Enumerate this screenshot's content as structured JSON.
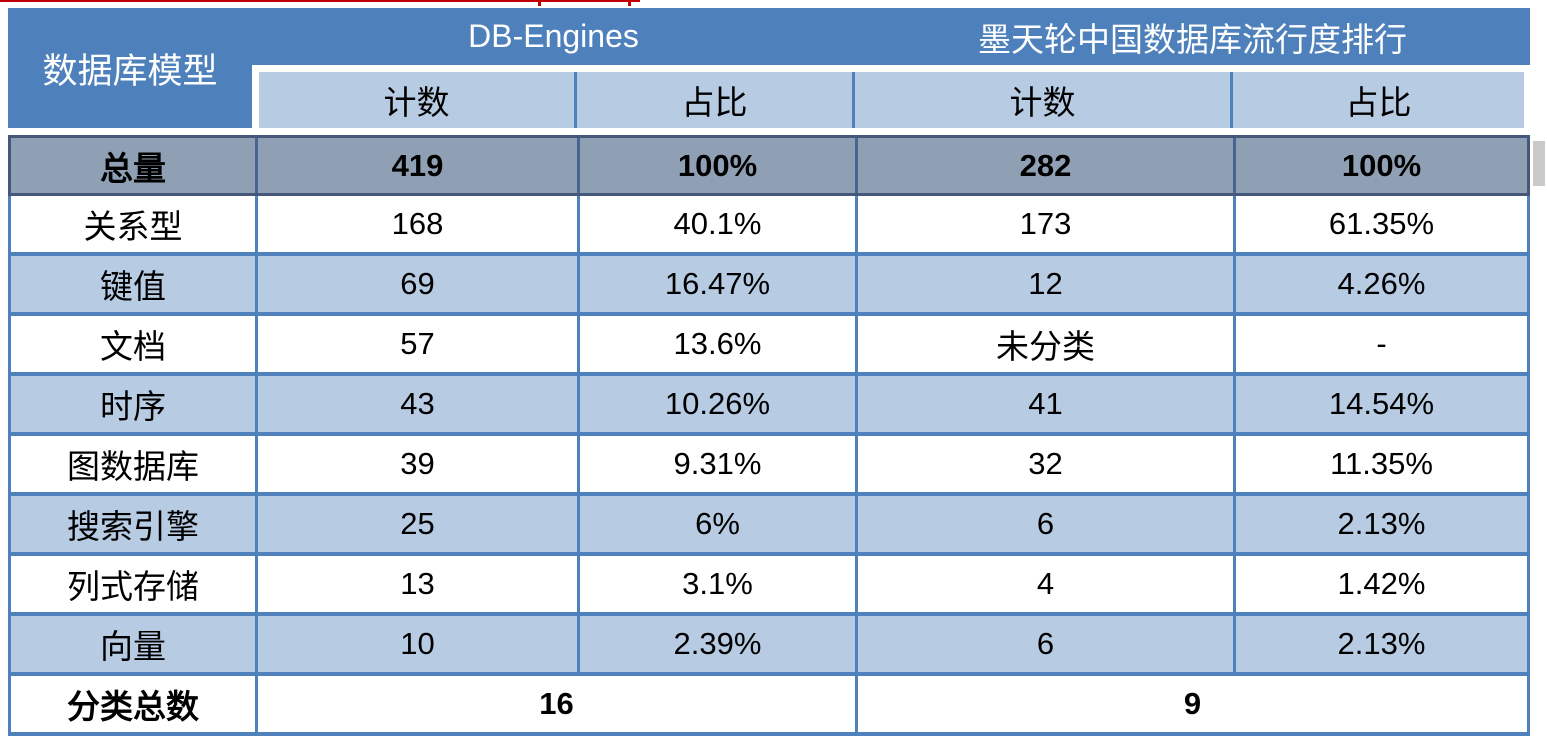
{
  "colors": {
    "header_blue": "#4e80bc",
    "subheader_light_blue": "#b7cbe3",
    "total_row_gray": "#8fa0b5",
    "grid_border_blue": "#4f81bd",
    "total_row_border": "#46587a",
    "red_artifact": "#c00000",
    "scrollbar_gray": "#c9c9c9",
    "text": "#000000",
    "header_text": "#ffffff"
  },
  "chart_data": {
    "type": "table",
    "corner_header": "数据库模型",
    "group_headers": [
      "DB-Engines",
      "墨天轮中国数据库流行度排行"
    ],
    "sub_headers": [
      "计数",
      "占比",
      "计数",
      "占比"
    ],
    "total_row": {
      "label": "总量",
      "values": [
        "419",
        "100%",
        "282",
        "100%"
      ]
    },
    "rows": [
      {
        "label": "关系型",
        "values": [
          "168",
          "40.1%",
          "173",
          "61.35%"
        ]
      },
      {
        "label": "键值",
        "values": [
          "69",
          "16.47%",
          "12",
          "4.26%"
        ]
      },
      {
        "label": "文档",
        "values": [
          "57",
          "13.6%",
          "未分类",
          "-"
        ]
      },
      {
        "label": "时序",
        "values": [
          "43",
          "10.26%",
          "41",
          "14.54%"
        ]
      },
      {
        "label": "图数据库",
        "values": [
          "39",
          "9.31%",
          "32",
          "11.35%"
        ]
      },
      {
        "label": "搜索引擎",
        "values": [
          "25",
          "6%",
          "6",
          "2.13%"
        ]
      },
      {
        "label": "列式存储",
        "values": [
          "13",
          "3.1%",
          "4",
          "1.42%"
        ]
      },
      {
        "label": "向量",
        "values": [
          "10",
          "2.39%",
          "6",
          "2.13%"
        ]
      }
    ],
    "footer_row": {
      "label": "分类总数",
      "values": [
        "16",
        "9"
      ]
    }
  }
}
